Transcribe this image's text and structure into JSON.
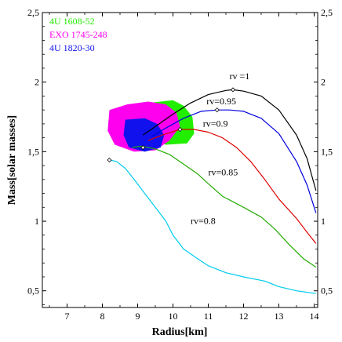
{
  "chart_data": {
    "type": "line",
    "title": "",
    "xlabel": "Radius[km]",
    "ylabel": "Mass[solar masses]",
    "xlim": [
      6.3,
      14.1
    ],
    "ylim": [
      0.38,
      2.5
    ],
    "grid": false,
    "x_ticks": [
      7,
      8,
      9,
      10,
      11,
      12,
      13,
      14
    ],
    "x_tick_labels": [
      "7",
      "8",
      "9",
      "10",
      "11",
      "12",
      "13",
      "14"
    ],
    "y_ticks": [
      0.5,
      1,
      1.5,
      2,
      2.5
    ],
    "y_tick_labels": [
      "0,5",
      "1",
      "1,5",
      "2",
      "2,5"
    ],
    "legend_position": "top-left",
    "regions": [
      {
        "name": "4U 1608-52",
        "color": "#22ee00",
        "outline": [
          [
            9.3,
            1.85
          ],
          [
            10.0,
            1.87
          ],
          [
            10.3,
            1.83
          ],
          [
            10.55,
            1.75
          ],
          [
            10.6,
            1.63
          ],
          [
            10.4,
            1.56
          ],
          [
            9.8,
            1.55
          ],
          [
            9.4,
            1.58
          ],
          [
            9.2,
            1.7
          ]
        ]
      },
      {
        "name": "EXO 1745-248",
        "color": "#ff00ee",
        "outline": [
          [
            8.2,
            1.8
          ],
          [
            8.7,
            1.84
          ],
          [
            9.3,
            1.86
          ],
          [
            9.8,
            1.84
          ],
          [
            10.1,
            1.78
          ],
          [
            10.2,
            1.68
          ],
          [
            9.9,
            1.58
          ],
          [
            9.5,
            1.51
          ],
          [
            8.9,
            1.5
          ],
          [
            8.35,
            1.55
          ],
          [
            8.15,
            1.65
          ]
        ]
      },
      {
        "name": "4U 1820-30",
        "color": "#1111ee",
        "outline": [
          [
            8.65,
            1.73
          ],
          [
            9.2,
            1.74
          ],
          [
            9.55,
            1.7
          ],
          [
            9.75,
            1.62
          ],
          [
            9.65,
            1.53
          ],
          [
            9.2,
            1.5
          ],
          [
            8.75,
            1.53
          ],
          [
            8.6,
            1.62
          ]
        ]
      }
    ],
    "series": [
      {
        "name": "rv =1",
        "color": "#000000",
        "points": [
          [
            9.15,
            1.62
          ],
          [
            9.5,
            1.68
          ],
          [
            10.0,
            1.77
          ],
          [
            10.5,
            1.85
          ],
          [
            11.0,
            1.91
          ],
          [
            11.5,
            1.94
          ],
          [
            11.7,
            1.945
          ],
          [
            12.0,
            1.935
          ],
          [
            12.5,
            1.9
          ],
          [
            13.0,
            1.8
          ],
          [
            13.5,
            1.62
          ],
          [
            13.8,
            1.45
          ],
          [
            14.05,
            1.22
          ]
        ]
      },
      {
        "name": "rv=0.95",
        "color": "#0000dd",
        "points": [
          [
            9.4,
            1.61
          ],
          [
            9.8,
            1.67
          ],
          [
            10.3,
            1.74
          ],
          [
            10.8,
            1.79
          ],
          [
            11.25,
            1.8
          ],
          [
            11.6,
            1.8
          ],
          [
            12.0,
            1.79
          ],
          [
            12.5,
            1.74
          ],
          [
            13.0,
            1.63
          ],
          [
            13.5,
            1.43
          ],
          [
            13.8,
            1.26
          ],
          [
            14.05,
            1.06
          ]
        ]
      },
      {
        "name": "rv=0.9",
        "color": "#dd0000",
        "points": [
          [
            9.3,
            1.58
          ],
          [
            9.7,
            1.62
          ],
          [
            10.2,
            1.66
          ],
          [
            10.6,
            1.66
          ],
          [
            11.0,
            1.64
          ],
          [
            11.4,
            1.6
          ],
          [
            11.8,
            1.53
          ],
          [
            12.2,
            1.43
          ],
          [
            12.6,
            1.3
          ],
          [
            13.0,
            1.16
          ],
          [
            13.5,
            1.02
          ],
          [
            13.8,
            0.92
          ],
          [
            14.05,
            0.84
          ]
        ]
      },
      {
        "name": "rv=0.85",
        "color": "#22aa00",
        "points": [
          [
            8.85,
            1.53
          ],
          [
            9.1,
            1.54
          ],
          [
            9.5,
            1.52
          ],
          [
            9.9,
            1.48
          ],
          [
            10.3,
            1.41
          ],
          [
            10.7,
            1.34
          ],
          [
            11.0,
            1.27
          ],
          [
            11.4,
            1.18
          ],
          [
            12.0,
            1.1
          ],
          [
            12.5,
            1.03
          ],
          [
            12.9,
            0.94
          ],
          [
            13.3,
            0.83
          ],
          [
            13.7,
            0.73
          ],
          [
            14.05,
            0.67
          ]
        ]
      },
      {
        "name": "rv=0.8",
        "color": "#00ccee",
        "points": [
          [
            8.2,
            1.44
          ],
          [
            8.4,
            1.43
          ],
          [
            8.65,
            1.38
          ],
          [
            8.9,
            1.3
          ],
          [
            9.2,
            1.2
          ],
          [
            9.5,
            1.1
          ],
          [
            9.8,
            1.0
          ],
          [
            10.0,
            0.9
          ],
          [
            10.3,
            0.8
          ],
          [
            10.7,
            0.73
          ],
          [
            11.0,
            0.68
          ],
          [
            11.5,
            0.63
          ],
          [
            12.0,
            0.6
          ],
          [
            12.6,
            0.57
          ],
          [
            13.0,
            0.53
          ],
          [
            13.5,
            0.5
          ],
          [
            14.05,
            0.48
          ]
        ]
      }
    ],
    "markers": [
      {
        "x": 8.2,
        "y": 1.44
      },
      {
        "x": 9.15,
        "y": 1.53
      },
      {
        "x": 10.2,
        "y": 1.66
      },
      {
        "x": 11.25,
        "y": 1.8
      },
      {
        "x": 11.7,
        "y": 1.945
      }
    ],
    "annotations": [
      {
        "text": "rv =1",
        "x": 11.6,
        "y": 2.02
      },
      {
        "text": "rv=0.95",
        "x": 10.95,
        "y": 1.84
      },
      {
        "text": "rv=0.9",
        "x": 10.85,
        "y": 1.68
      },
      {
        "text": "rv=0.85",
        "x": 11.0,
        "y": 1.33
      },
      {
        "text": "rv=0.8",
        "x": 10.5,
        "y": 0.98
      }
    ]
  }
}
